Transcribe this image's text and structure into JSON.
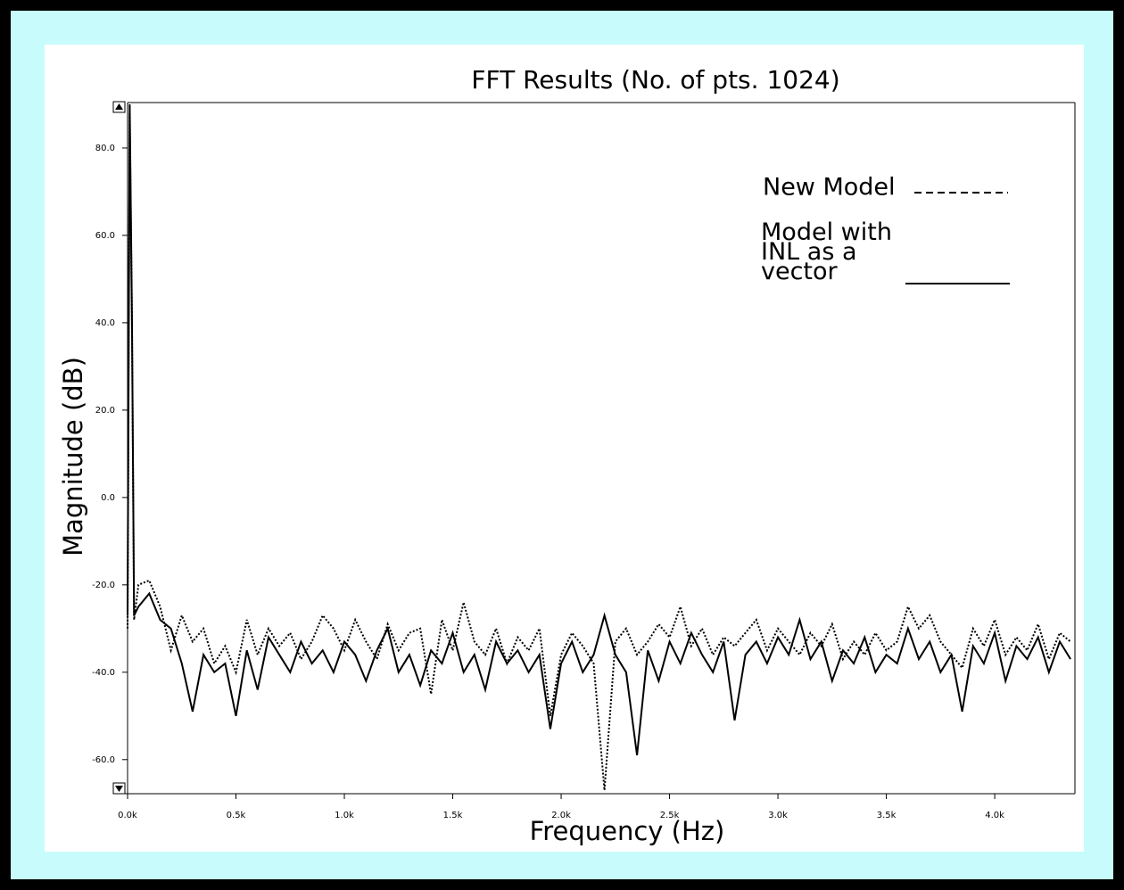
{
  "chart_data": {
    "type": "line",
    "title": "FFT Results (No. of pts. 1024)",
    "x_label": "Frequency (Hz)",
    "y_label": "Magnitude (dB)",
    "x": [
      0,
      10,
      20,
      30,
      50,
      100,
      150,
      200,
      250,
      300,
      350,
      400,
      450,
      500,
      550,
      600,
      650,
      700,
      750,
      800,
      850,
      900,
      950,
      1000,
      1050,
      1100,
      1150,
      1200,
      1250,
      1300,
      1350,
      1400,
      1450,
      1500,
      1550,
      1600,
      1650,
      1700,
      1750,
      1800,
      1850,
      1900,
      1950,
      2000,
      2050,
      2100,
      2150,
      2200,
      2250,
      2300,
      2350,
      2400,
      2450,
      2500,
      2550,
      2600,
      2650,
      2700,
      2750,
      2800,
      2850,
      2900,
      2950,
      3000,
      3050,
      3100,
      3150,
      3200,
      3250,
      3300,
      3350,
      3400,
      3450,
      3500,
      3550,
      3600,
      3650,
      3700,
      3750,
      3800,
      3850,
      3900,
      3950,
      4000,
      4050,
      4100,
      4150,
      4200,
      4250,
      4300,
      4350
    ],
    "series": [
      {
        "name": "New Model",
        "color": "#000000",
        "dash": "dotted",
        "values": [
          -30,
          88,
          40,
          -28,
          -20,
          -19,
          -25,
          -35,
          -27,
          -33,
          -30,
          -38,
          -34,
          -40,
          -28,
          -36,
          -30,
          -34,
          -31,
          -37,
          -33,
          -27,
          -30,
          -35,
          -28,
          -33,
          -37,
          -29,
          -35,
          -31,
          -30,
          -45,
          -28,
          -35,
          -24,
          -33,
          -36,
          -30,
          -38,
          -32,
          -35,
          -30,
          -50,
          -36,
          -31,
          -34,
          -38,
          -67,
          -33,
          -30,
          -36,
          -33,
          -29,
          -32,
          -25,
          -34,
          -30,
          -36,
          -32,
          -34,
          -31,
          -28,
          -35,
          -30,
          -33,
          -36,
          -31,
          -34,
          -29,
          -37,
          -33,
          -36,
          -31,
          -35,
          -33,
          -25,
          -30,
          -27,
          -33,
          -36,
          -39,
          -30,
          -34,
          -28,
          -36,
          -32,
          -35,
          -29,
          -37,
          -31,
          -33
        ]
      },
      {
        "name": "Model with INL as a vector",
        "color": "#000000",
        "dash": "solid",
        "values": [
          -27,
          90,
          42,
          -27,
          -25,
          -22,
          -28,
          -30,
          -38,
          -49,
          -36,
          -40,
          -38,
          -50,
          -35,
          -44,
          -32,
          -36,
          -40,
          -33,
          -38,
          -35,
          -40,
          -33,
          -36,
          -42,
          -35,
          -30,
          -40,
          -36,
          -43,
          -35,
          -38,
          -31,
          -40,
          -36,
          -44,
          -33,
          -38,
          -35,
          -40,
          -36,
          -53,
          -38,
          -33,
          -40,
          -36,
          -27,
          -36,
          -40,
          -59,
          -35,
          -42,
          -33,
          -38,
          -31,
          -36,
          -40,
          -33,
          -51,
          -36,
          -33,
          -38,
          -32,
          -36,
          -28,
          -37,
          -33,
          -42,
          -35,
          -38,
          -32,
          -40,
          -36,
          -38,
          -30,
          -37,
          -33,
          -40,
          -36,
          -49,
          -34,
          -38,
          -31,
          -42,
          -34,
          -37,
          -32,
          -40,
          -33,
          -37
        ]
      }
    ],
    "xlim": [
      0,
      4370
    ],
    "ylim": [
      -67.8,
      90.4
    ],
    "xticks": [
      {
        "value": 0,
        "label": "0.0k"
      },
      {
        "value": 500,
        "label": "0.5k"
      },
      {
        "value": 1000,
        "label": "1.0k"
      },
      {
        "value": 1500,
        "label": "1.5k"
      },
      {
        "value": 2000,
        "label": "2.0k"
      },
      {
        "value": 2500,
        "label": "2.5k"
      },
      {
        "value": 3000,
        "label": "3.0k"
      },
      {
        "value": 3500,
        "label": "3.5k"
      },
      {
        "value": 4000,
        "label": "4.0k"
      }
    ],
    "yticks": [
      {
        "value": -60,
        "label": "-60.0"
      },
      {
        "value": -40,
        "label": "-40.0"
      },
      {
        "value": -20,
        "label": "-20.0"
      },
      {
        "value": 0,
        "label": "0.0"
      },
      {
        "value": 20,
        "label": "20.0"
      },
      {
        "value": 40,
        "label": "40.0"
      },
      {
        "value": 60,
        "label": "60.0"
      },
      {
        "value": 80,
        "label": "80.0"
      }
    ],
    "legend": "upper right",
    "grid": false
  }
}
